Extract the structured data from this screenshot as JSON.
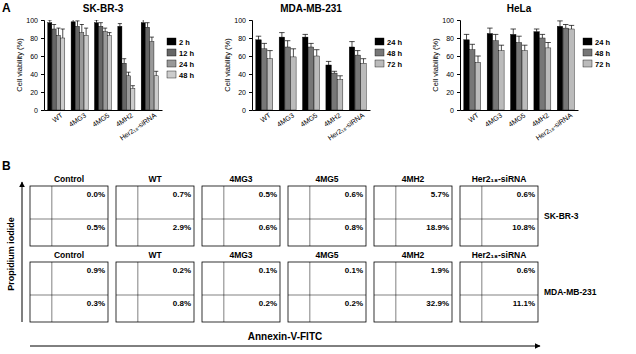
{
  "chart_data": [
    {
      "type": "bar",
      "title": "SK-BR-3",
      "y_label": "Cell viability (%)",
      "categories": [
        "WT",
        "4MG3",
        "4MG5",
        "4MH2",
        "Her2₁₈-siRNA"
      ],
      "series": [
        {
          "name": "2 h",
          "color": "#000000",
          "values": [
            97,
            98,
            97,
            93,
            97
          ],
          "errors": [
            3,
            3,
            3,
            3,
            4
          ]
        },
        {
          "name": "12 h",
          "color": "#666666",
          "values": [
            90,
            93,
            93,
            52,
            92
          ],
          "errors": [
            5,
            6,
            4,
            5,
            5
          ]
        },
        {
          "name": "24 h",
          "color": "#999999",
          "values": [
            83,
            86,
            87,
            38,
            76
          ],
          "errors": [
            8,
            9,
            4,
            4,
            5
          ]
        },
        {
          "name": "48 h",
          "color": "#cccccc",
          "values": [
            80,
            83,
            83,
            24,
            38
          ],
          "errors": [
            10,
            8,
            3,
            3,
            5
          ]
        }
      ],
      "ylim": [
        0,
        100
      ],
      "yticks": [
        0,
        20,
        40,
        60,
        80,
        100
      ],
      "legend": "right"
    },
    {
      "type": "bar",
      "title": "MDA-MB-231",
      "y_label": "Cell viability (%)",
      "categories": [
        "WT",
        "4MG3",
        "4MG5",
        "4MH2",
        "Her2₁₈-siRNA"
      ],
      "series": [
        {
          "name": "24 h",
          "color": "#000000",
          "values": [
            78,
            81,
            81,
            50,
            70
          ],
          "errors": [
            4,
            5,
            3,
            4,
            6
          ]
        },
        {
          "name": "48 h",
          "color": "#777777",
          "values": [
            68,
            70,
            70,
            41,
            61
          ],
          "errors": [
            6,
            7,
            4,
            2,
            5
          ]
        },
        {
          "name": "72 h",
          "color": "#bbbbbb",
          "values": [
            57,
            59,
            60,
            34,
            52
          ],
          "errors": [
            9,
            9,
            7,
            4,
            5
          ]
        }
      ],
      "ylim": [
        0,
        100
      ],
      "yticks": [
        0,
        20,
        40,
        60,
        80,
        100
      ],
      "legend": "right"
    },
    {
      "type": "bar",
      "title": "HeLa",
      "y_label": "Cell viability (%)",
      "categories": [
        "WT",
        "4MG3",
        "4MG5",
        "4MH2",
        "Her2₁₈-siRNA"
      ],
      "series": [
        {
          "name": "24 h",
          "color": "#000000",
          "values": [
            78,
            85,
            84,
            87,
            93
          ],
          "errors": [
            6,
            6,
            6,
            3,
            6
          ]
        },
        {
          "name": "48 h",
          "color": "#777777",
          "values": [
            67,
            77,
            75,
            80,
            91
          ],
          "errors": [
            6,
            7,
            7,
            4,
            4
          ]
        },
        {
          "name": "72 h",
          "color": "#bbbbbb",
          "values": [
            53,
            66,
            66,
            69,
            90
          ],
          "errors": [
            7,
            6,
            6,
            6,
            4
          ]
        }
      ],
      "ylim": [
        0,
        100
      ],
      "yticks": [
        0,
        20,
        40,
        60,
        80,
        100
      ],
      "legend": "right"
    }
  ],
  "figure_labels": [
    "A",
    "B"
  ],
  "flow_cytometry": {
    "y_label": "Propidium iodide",
    "x_label": "Annexin-V-FITC",
    "rows": [
      {
        "label": "SK-BR-3",
        "panels": [
          {
            "title": "Control",
            "upper": "0.0%",
            "lower": "0.5%"
          },
          {
            "title": "WT",
            "upper": "0.7%",
            "lower": "2.9%"
          },
          {
            "title": "4MG3",
            "upper": "0.5%",
            "lower": "0.6%"
          },
          {
            "title": "4MG5",
            "upper": "0.6%",
            "lower": "0.8%"
          },
          {
            "title": "4MH2",
            "upper": "5.7%",
            "lower": "18.9%"
          },
          {
            "title": "Her2₁₈-siRNA",
            "upper": "0.6%",
            "lower": "10.8%"
          }
        ]
      },
      {
        "label": "MDA-MB-231",
        "panels": [
          {
            "title": "Control",
            "upper": "0.9%",
            "lower": "0.3%"
          },
          {
            "title": "WT",
            "upper": "0.2%",
            "lower": "0.8%"
          },
          {
            "title": "4MG3",
            "upper": "0.1%",
            "lower": "0.2%"
          },
          {
            "title": "4MG5",
            "upper": "0.1%",
            "lower": "0.2%"
          },
          {
            "title": "4MH2",
            "upper": "1.9%",
            "lower": "32.9%"
          },
          {
            "title": "Her2₁₈-siRNA",
            "upper": "0.6%",
            "lower": "11.1%"
          }
        ]
      }
    ]
  }
}
